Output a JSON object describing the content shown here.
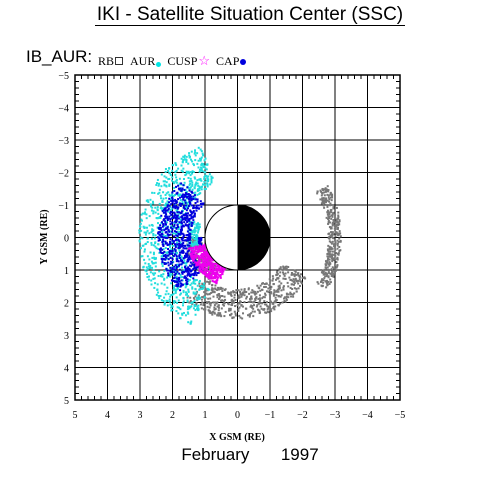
{
  "header": {
    "title": "IKI - Satellite Situation Center (SSC)",
    "subtitle": "IB_AUR:"
  },
  "legend": [
    {
      "label": "RB",
      "symbol": "open-square",
      "color": "#333333"
    },
    {
      "label": "AUR",
      "symbol": "dot",
      "color": "#00e5e5"
    },
    {
      "label": "CUSP",
      "symbol": "star",
      "color": "#ff00ff"
    },
    {
      "label": "CAP",
      "symbol": "dot",
      "color": "#0000dd"
    }
  ],
  "footer": {
    "month": "February",
    "year": "1997"
  },
  "chart_data": {
    "type": "scatter",
    "xlabel": "X GSM (RE)",
    "ylabel": "Y GSM (RE)",
    "xlim": [
      5,
      -5
    ],
    "ylim": [
      -5,
      5
    ],
    "x_ticks": [
      5,
      4,
      3,
      2,
      1,
      0,
      -1,
      -2,
      -3,
      -4,
      -5
    ],
    "y_ticks": [
      -5,
      -4,
      -3,
      -2,
      -1,
      0,
      1,
      2,
      3,
      4,
      5
    ],
    "x_tick_labels": [
      "5",
      "4",
      "3",
      "2",
      "1",
      "0",
      "−1",
      "−2",
      "−3",
      "−4",
      "−5"
    ],
    "y_tick_labels": [
      "−5",
      "−4",
      "−3",
      "−2",
      "−1",
      "0",
      "1",
      "2",
      "3",
      "4",
      "5"
    ],
    "grid": true,
    "earth": {
      "radius": 1,
      "night_side": "negative-x"
    },
    "series": [
      {
        "name": "RB",
        "color": "#777777",
        "regions": [
          {
            "r": [
              1.1,
              1.6
            ],
            "angle_deg": [
              120,
              180
            ],
            "density": 200
          },
          {
            "r": [
              1.6,
              2.5
            ],
            "angle_deg": [
              30,
              130
            ],
            "density": 520
          },
          {
            "r": [
              2.8,
              3.2
            ],
            "angle_deg": [
              -30,
              30
            ],
            "density": 330
          }
        ]
      },
      {
        "name": "AUR",
        "color": "#22dddd",
        "regions": [
          {
            "r": [
              1.75,
              3.05
            ],
            "angle_deg": [
              118,
              248
            ],
            "density": 800
          },
          {
            "r": [
              1.2,
              1.55
            ],
            "angle_deg": [
              165,
              200
            ],
            "density": 100
          }
        ]
      },
      {
        "name": "CAP",
        "color": "#0000dd",
        "regions": [
          {
            "r": [
              1.45,
              2.45
            ],
            "angle_deg": [
              137,
              225
            ],
            "density": 650
          },
          {
            "r": [
              1.1,
              1.2
            ],
            "angle_deg": [
              165,
              180
            ],
            "density": 30
          }
        ]
      },
      {
        "name": "CUSP",
        "color": "#ee00ee",
        "regions": [
          {
            "r": [
              1.0,
              1.55
            ],
            "angle_deg": [
              112,
              168
            ],
            "density": 360
          }
        ]
      }
    ]
  }
}
